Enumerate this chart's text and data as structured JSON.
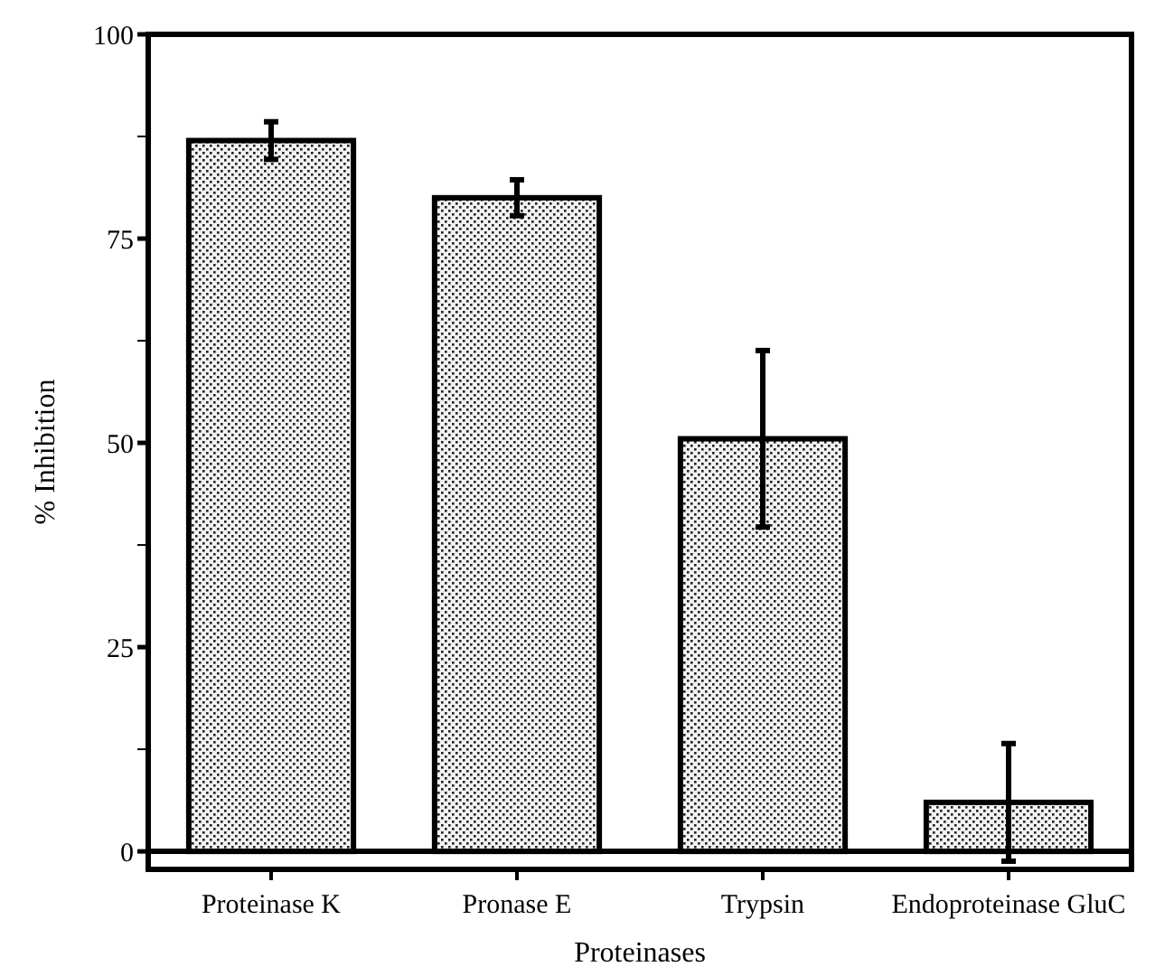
{
  "chart_data": {
    "type": "bar",
    "xlabel": "Proteinases",
    "ylabel": "% Inhibition",
    "categories": [
      "Proteinase K",
      "Pronase E",
      "Trypsin",
      "Endoproteinase GluC"
    ],
    "values": [
      87,
      80,
      50.5,
      6
    ],
    "errors": [
      2.3,
      2.2,
      10.8,
      7.2
    ],
    "color": "#000000",
    "ylim": [
      -2.2,
      100
    ],
    "yticks": [
      0,
      {
        "value": 12.5,
        "label": null
      },
      25,
      {
        "value": 37.5,
        "label": null
      },
      50,
      {
        "value": 62.5,
        "label": null
      },
      75,
      {
        "value": 87.5,
        "label": null
      },
      100
    ],
    "stacked": false
  }
}
